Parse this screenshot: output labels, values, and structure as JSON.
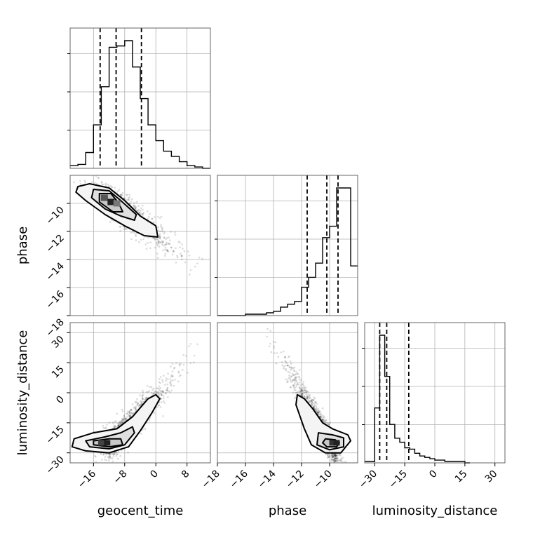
{
  "chart_data": {
    "type": "corner",
    "grid": true,
    "parameters": [
      {
        "name": "geocent_time",
        "range": [
          -22,
          14
        ],
        "ticks": [
          -16,
          -8,
          0,
          8
        ],
        "tick_labels": [
          "−16",
          "−8",
          "0",
          "8"
        ],
        "quantile_lines": [
          -14.3,
          -10.2,
          -3.7
        ]
      },
      {
        "name": "phase",
        "range": [
          -18,
          -8
        ],
        "ticks": [
          -18,
          -16,
          -14,
          -12,
          -10
        ],
        "tick_labels": [
          "−18",
          "−16",
          "−14",
          "−12",
          "−10"
        ],
        "quantile_lines": [
          -11.6,
          -10.2,
          -9.4
        ]
      },
      {
        "name": "luminosity_distance",
        "range": [
          -35,
          35
        ],
        "ticks": [
          -30,
          -15,
          0,
          15,
          30
        ],
        "tick_labels": [
          "−30",
          "−15",
          "0",
          "15",
          "30"
        ],
        "quantile_lines": [
          -27.5,
          -24,
          -13
        ]
      }
    ],
    "histograms": [
      {
        "parameter": "geocent_time",
        "bin_edges": [
          -22,
          -20,
          -18,
          -16,
          -14,
          -12,
          -10,
          -8,
          -6,
          -4,
          -2,
          0,
          2,
          4,
          6,
          8,
          10,
          12,
          14
        ],
        "counts": [
          0.02,
          0.03,
          0.12,
          0.33,
          0.62,
          0.92,
          0.93,
          0.97,
          0.77,
          0.53,
          0.33,
          0.21,
          0.13,
          0.09,
          0.05,
          0.02,
          0.01,
          0.0
        ]
      },
      {
        "parameter": "phase",
        "bin_edges": [
          -18,
          -17.5,
          -17,
          -16.5,
          -16,
          -15.5,
          -15,
          -14.5,
          -14,
          -13.5,
          -13,
          -12.5,
          -12,
          -11.5,
          -11,
          -10.5,
          -10,
          -9.5,
          -9,
          -8.5,
          -8
        ],
        "counts": [
          0.0,
          0.0,
          0.0,
          0.0,
          0.01,
          0.01,
          0.01,
          0.02,
          0.03,
          0.06,
          0.08,
          0.1,
          0.2,
          0.27,
          0.37,
          0.55,
          0.63,
          0.9,
          0.9,
          0.35
        ]
      },
      {
        "parameter": "luminosity_distance",
        "bin_edges": [
          -35,
          -32.5,
          -30,
          -27.5,
          -25,
          -22.5,
          -20,
          -17.5,
          -15,
          -12.5,
          -10,
          -7.5,
          -5,
          -2.5,
          0,
          2.5,
          5,
          7.5,
          10,
          12.5,
          15,
          17.5
        ],
        "counts": [
          0.01,
          0.01,
          0.4,
          0.93,
          0.63,
          0.28,
          0.18,
          0.15,
          0.11,
          0.1,
          0.07,
          0.05,
          0.04,
          0.03,
          0.02,
          0.02,
          0.01,
          0.01,
          0.01,
          0.01,
          0.0
        ]
      }
    ],
    "scatter_panels": [
      {
        "x": "geocent_time",
        "y": "phase",
        "trend": "negative",
        "peak": [
          -12,
          -10
        ]
      },
      {
        "x": "geocent_time",
        "y": "luminosity_distance",
        "trend": "positive",
        "peak": [
          -13,
          -25
        ]
      },
      {
        "x": "phase",
        "y": "luminosity_distance",
        "trend": "negative",
        "peak": [
          -9.6,
          -25
        ]
      }
    ]
  }
}
